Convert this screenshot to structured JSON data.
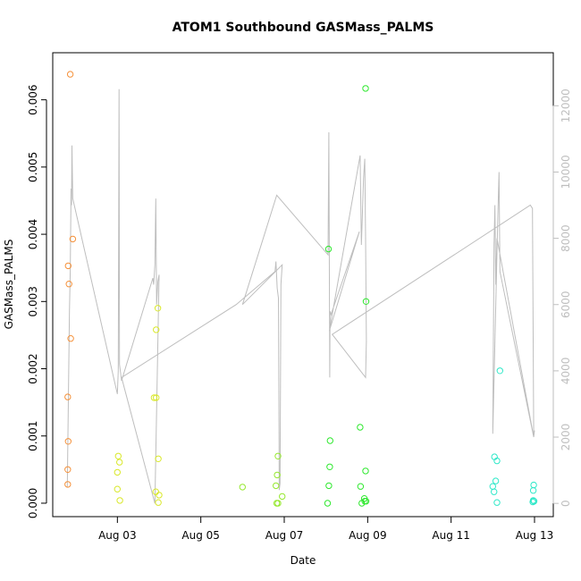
{
  "chart_data": {
    "type": "scatter",
    "title": "ATOM1 Southbound GASMass_PALMS",
    "xlabel": "Date",
    "ylabel": "GASMass_PALMS",
    "x_unit": "days in August",
    "xlim": [
      1.45,
      13.45
    ],
    "ylim": [
      -0.0002,
      0.0067
    ],
    "y_ticks": [
      0,
      0.001,
      0.002,
      0.003,
      0.004,
      0.005,
      0.006
    ],
    "y_tick_labels": [
      "0.000",
      "0.001",
      "0.002",
      "0.003",
      "0.004",
      "0.005",
      "0.006"
    ],
    "x_ticks": [
      3,
      5,
      7,
      9,
      11,
      13
    ],
    "x_tick_labels": [
      "Aug 03",
      "Aug 05",
      "Aug 07",
      "Aug 09",
      "Aug 11",
      "Aug 13"
    ],
    "y2lim": [
      -400,
      13600
    ],
    "y2_ticks": [
      0,
      2000,
      4000,
      6000,
      8000,
      10000,
      12000
    ],
    "y2_tick_labels": [
      "0",
      "2000",
      "4000",
      "6000",
      "8000",
      "10000",
      "12000"
    ],
    "grid": false,
    "colors": {
      "orange": "#f5913a",
      "yellow": "#d9e82a",
      "yellowgreen": "#96e830",
      "green": "#2ee82e",
      "cyan": "#2ee8c8",
      "altitude": "#bebebe"
    },
    "series": [
      {
        "color": "#f5913a",
        "points": [
          [
            1.87,
            0.00638
          ],
          [
            1.93,
            0.00393
          ],
          [
            1.82,
            0.00353
          ],
          [
            1.84,
            0.00326
          ],
          [
            1.88,
            0.00245
          ],
          [
            1.81,
            0.00158
          ],
          [
            1.82,
            0.00092
          ],
          [
            1.81,
            0.0005
          ],
          [
            1.81,
            0.00028
          ]
        ]
      },
      {
        "color": "#d9e82a",
        "points": [
          [
            3.02,
            0.0007
          ],
          [
            3.05,
            0.00061
          ],
          [
            3.0,
            0.00046
          ],
          [
            3.0,
            0.00021
          ],
          [
            3.06,
            4e-05
          ],
          [
            3.97,
            0.0029
          ],
          [
            3.93,
            0.00258
          ],
          [
            3.88,
            0.00157
          ],
          [
            3.93,
            0.00157
          ],
          [
            3.98,
            0.00066
          ],
          [
            3.92,
            0.00017
          ],
          [
            4.0,
            0.00012
          ],
          [
            3.98,
            1e-05
          ]
        ]
      },
      {
        "color": "#96e830",
        "points": [
          [
            6.0,
            0.00024
          ],
          [
            6.85,
            0.0007
          ],
          [
            6.83,
            0.00042
          ],
          [
            6.8,
            0.00026
          ],
          [
            6.95,
            0.0001
          ],
          [
            6.82,
            0.0
          ],
          [
            6.85,
            0.0
          ]
        ]
      },
      {
        "color": "#2ee82e",
        "points": [
          [
            8.95,
            0.00617
          ],
          [
            8.06,
            0.00378
          ],
          [
            8.96,
            0.003
          ],
          [
            8.1,
            0.00093
          ],
          [
            8.09,
            0.00054
          ],
          [
            8.82,
            0.00113
          ],
          [
            8.95,
            0.00048
          ],
          [
            8.07,
            0.00026
          ],
          [
            8.83,
            0.00025
          ],
          [
            8.92,
            7e-05
          ],
          [
            8.96,
            3e-05
          ],
          [
            8.93,
            3e-05
          ],
          [
            8.04,
            0.0
          ],
          [
            8.86,
            0.0
          ]
        ]
      },
      {
        "color": "#2ee8c8",
        "points": [
          [
            12.17,
            0.00197
          ],
          [
            12.04,
            0.00069
          ],
          [
            12.1,
            0.00063
          ],
          [
            12.07,
            0.00033
          ],
          [
            12.0,
            0.00025
          ],
          [
            12.03,
            0.00017
          ],
          [
            12.1,
            1e-05
          ],
          [
            12.98,
            0.00027
          ],
          [
            12.97,
            0.00019
          ],
          [
            12.97,
            4e-05
          ],
          [
            12.99,
            3e-05
          ],
          [
            12.96,
            2e-05
          ]
        ]
      }
    ],
    "altitude_line": {
      "color": "#bebebe",
      "points": [
        [
          1.8,
          500
        ],
        [
          1.85,
          5800
        ],
        [
          1.87,
          7000
        ],
        [
          1.89,
          9500
        ],
        [
          1.9,
          9000
        ],
        [
          1.91,
          10800
        ],
        [
          1.93,
          9200
        ],
        [
          3.0,
          3300
        ],
        [
          3.02,
          4000
        ],
        [
          3.04,
          12500
        ],
        [
          3.05,
          4200
        ],
        [
          3.1,
          3700
        ],
        [
          3.85,
          6800
        ],
        [
          3.87,
          6600
        ],
        [
          3.9,
          7200
        ],
        [
          3.92,
          9200
        ],
        [
          3.94,
          6000
        ],
        [
          3.97,
          6700
        ],
        [
          4.0,
          6900
        ],
        [
          3.9,
          0
        ],
        [
          3.1,
          3800
        ],
        [
          5.85,
          6000
        ],
        [
          6.78,
          7000
        ],
        [
          6.8,
          7300
        ],
        [
          6.83,
          6500
        ],
        [
          6.85,
          6300
        ],
        [
          6.86,
          6200
        ],
        [
          6.88,
          400
        ],
        [
          6.9,
          600
        ],
        [
          6.92,
          6600
        ],
        [
          6.95,
          7200
        ],
        [
          6.0,
          6000
        ],
        [
          6.82,
          9300
        ],
        [
          8.05,
          7500
        ],
        [
          8.07,
          11200
        ],
        [
          8.09,
          3800
        ],
        [
          8.1,
          5800
        ],
        [
          8.12,
          5700
        ],
        [
          8.8,
          8200
        ],
        [
          8.08,
          5200
        ],
        [
          8.82,
          10500
        ],
        [
          8.85,
          7800
        ],
        [
          8.9,
          9800
        ],
        [
          8.93,
          10400
        ],
        [
          8.95,
          8000
        ],
        [
          8.97,
          4900
        ],
        [
          8.95,
          3800
        ],
        [
          8.15,
          5100
        ],
        [
          12.9,
          9000
        ],
        [
          12.95,
          8900
        ],
        [
          12.98,
          2000
        ],
        [
          12.1,
          8000
        ],
        [
          12.07,
          6600
        ],
        [
          12.05,
          9000
        ],
        [
          12.03,
          7800
        ],
        [
          12.0,
          2100
        ],
        [
          12.12,
          8600
        ],
        [
          12.15,
          10000
        ],
        [
          12.17,
          7000
        ],
        [
          12.98,
          2000
        ],
        [
          13.0,
          2200
        ]
      ]
    }
  }
}
